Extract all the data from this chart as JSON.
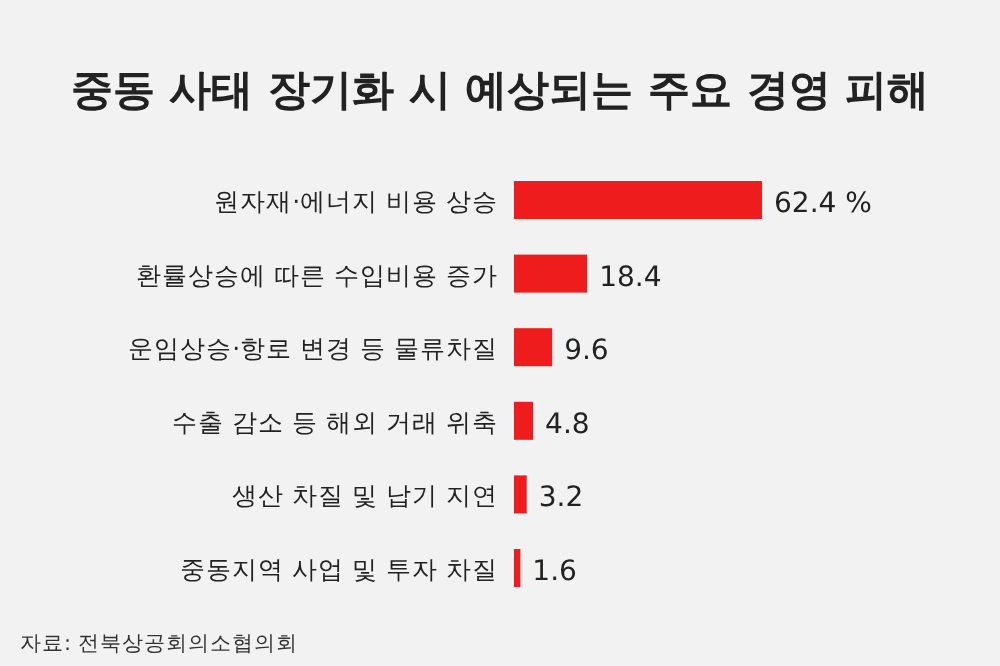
{
  "chart_data": {
    "type": "bar",
    "orientation": "horizontal",
    "title": "중동 사태 장기화 시 예상되는 주요 경영 피해",
    "categories": [
      "원자재·에너지 비용 상승",
      "환률상승에 따른 수입비용 증가",
      "운임상승·항로 변경 등 물류차질",
      "수출 감소 등 해외 거래 위축",
      "생산 차질 및 납기 지연",
      "중동지역 사업 및 투자 차질"
    ],
    "values": [
      62.4,
      18.4,
      9.6,
      4.8,
      3.2,
      1.6
    ],
    "color": "#ee1c1c",
    "value_labels": [
      "62.4 %",
      "18.4",
      "9.6",
      "4.8",
      "3.2",
      "1.6"
    ],
    "annotations": [
      "자료: 전북상공회의소협의회"
    ]
  }
}
